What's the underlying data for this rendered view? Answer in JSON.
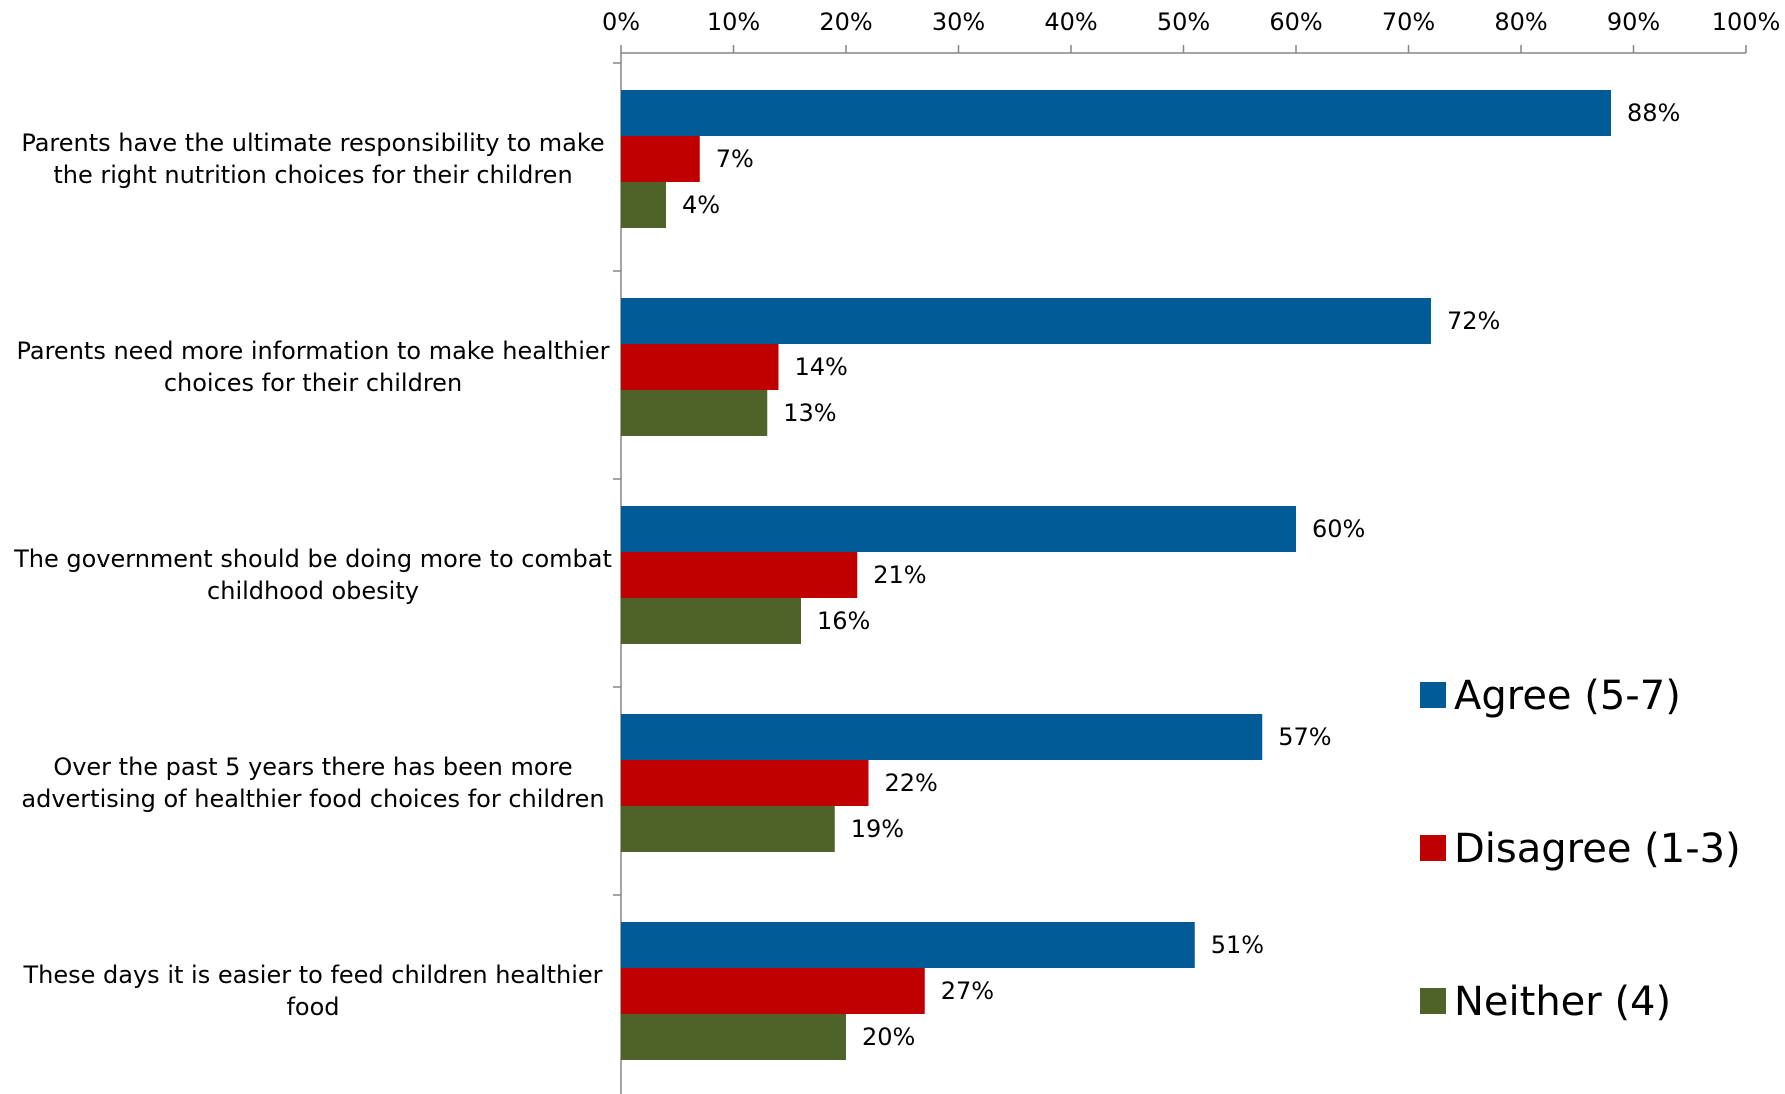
{
  "chart_data": {
    "type": "bar",
    "orientation": "horizontal",
    "title": "",
    "xlabel": "",
    "ylabel": "",
    "xlim": [
      0,
      100
    ],
    "x_ticks": [
      "0%",
      "10%",
      "20%",
      "30%",
      "40%",
      "50%",
      "60%",
      "70%",
      "80%",
      "90%",
      "100%"
    ],
    "x_axis_position": "top",
    "grid": false,
    "legend_position": "right",
    "categories": [
      [
        "Parents have the ultimate responsibility to make",
        "the right nutrition choices for their children"
      ],
      [
        "Parents need more information to make healthier",
        "choices for their children"
      ],
      [
        "The government should be doing more to combat",
        "childhood obesity"
      ],
      [
        "Over the past 5 years there has been more",
        "advertising of healthier food choices for children"
      ],
      [
        "These days it is easier to feed children healthier",
        "food"
      ]
    ],
    "series": [
      {
        "name": "Agree (5-7)",
        "color": "#005b96",
        "values": [
          88,
          72,
          60,
          57,
          51
        ],
        "labels": [
          "88%",
          "72%",
          "60%",
          "57%",
          "51%"
        ]
      },
      {
        "name": "Disagree (1-3)",
        "color": "#c00000",
        "values": [
          7,
          14,
          21,
          22,
          27
        ],
        "labels": [
          "7%",
          "14%",
          "21%",
          "22%",
          "27%"
        ]
      },
      {
        "name": "Neither (4)",
        "color": "#4f6228",
        "values": [
          4,
          13,
          16,
          19,
          20
        ],
        "labels": [
          "4%",
          "13%",
          "16%",
          "19%",
          "20%"
        ]
      }
    ]
  }
}
